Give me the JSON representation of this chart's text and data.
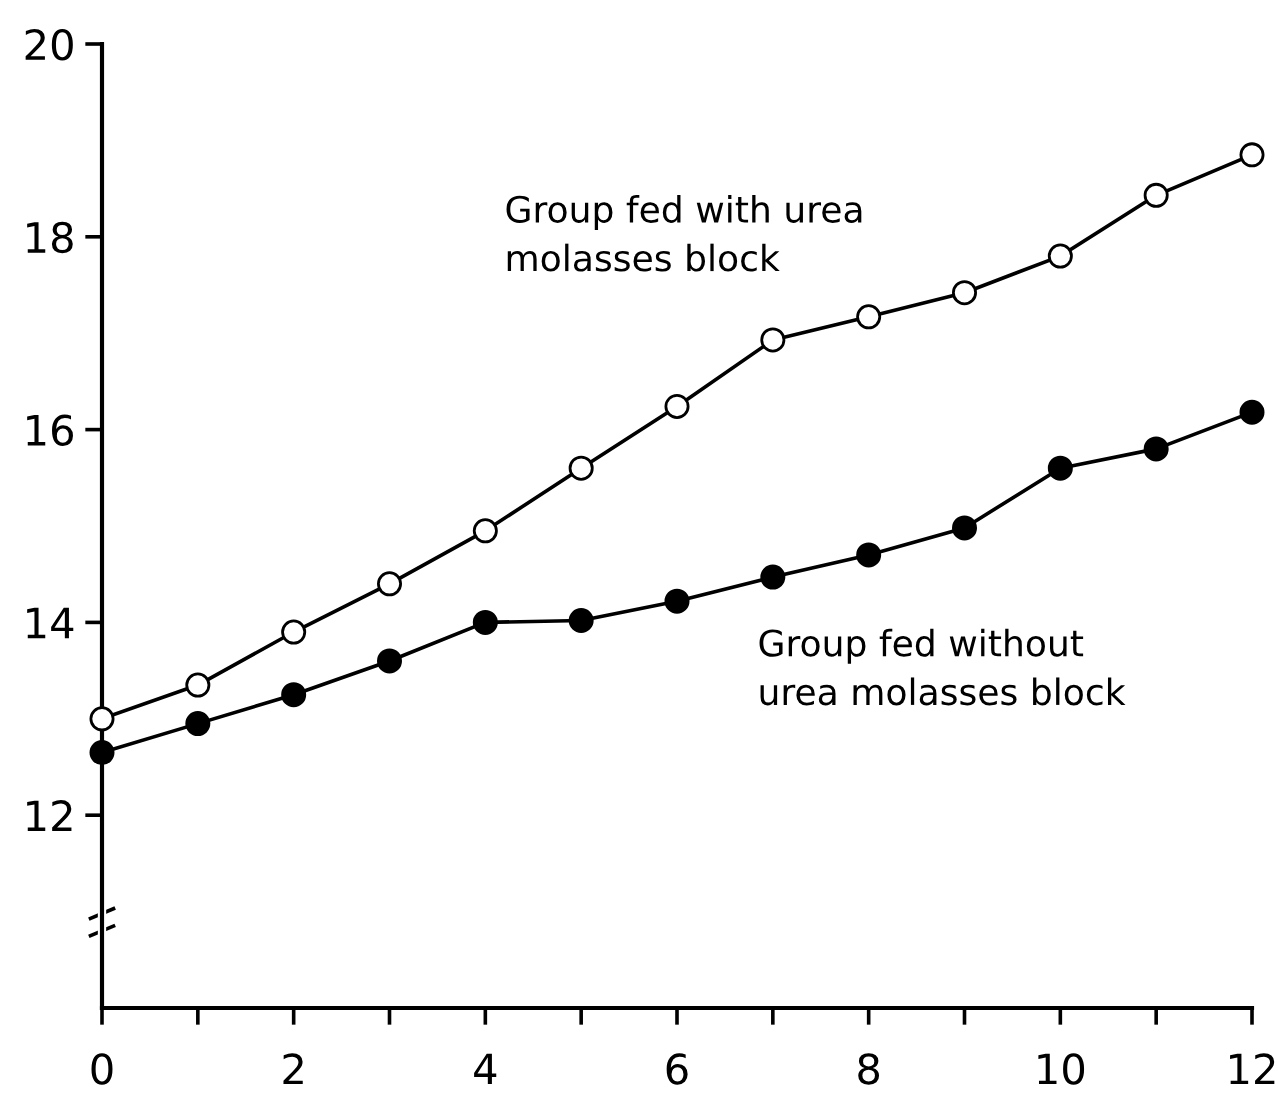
{
  "chart_data": {
    "type": "line",
    "x": [
      0,
      1,
      2,
      3,
      4,
      5,
      6,
      7,
      8,
      9,
      10,
      11,
      12
    ],
    "series": [
      {
        "color": "#000000",
        "values": [
          13.0,
          13.35,
          13.9,
          14.4,
          14.95,
          15.6,
          16.24,
          16.93,
          17.17,
          17.42,
          17.8,
          18.43,
          18.85
        ]
      },
      {
        "color": "#000000",
        "values": [
          12.65,
          12.95,
          13.25,
          13.6,
          14.0,
          14.02,
          14.22,
          14.47,
          14.7,
          14.98,
          15.6,
          15.8,
          16.18
        ]
      }
    ],
    "annotations": [
      "Group fed with urea\nmolasses block",
      "Group fed without\nurea molasses block"
    ],
    "xlim": [
      0,
      12
    ],
    "ylim": [
      10,
      20
    ],
    "xticks": [
      0,
      {
        "value": 1,
        "label": null
      },
      2,
      {
        "value": 3,
        "label": null
      },
      4,
      {
        "value": 5,
        "label": null
      },
      6,
      {
        "value": 7,
        "label": null
      },
      8,
      {
        "value": 9,
        "label": null
      },
      10,
      {
        "value": 11,
        "label": null
      },
      12
    ],
    "yticks": [
      12,
      14,
      16,
      18,
      20
    ],
    "marker": "circle",
    "line_style": "solid",
    "grid": false,
    "legend": false
  }
}
